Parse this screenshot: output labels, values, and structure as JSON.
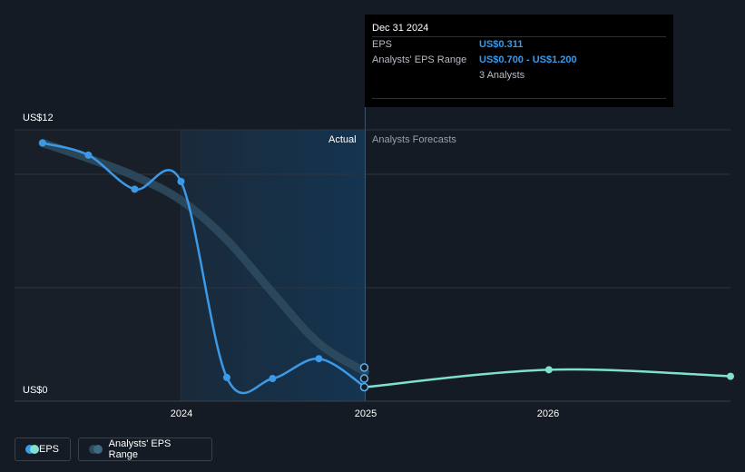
{
  "chart_data": {
    "type": "line",
    "y_axis": {
      "min_label": "US$0",
      "max_label": "US$12",
      "ylim": [
        0,
        12
      ]
    },
    "x_ticks": [
      "2024",
      "2025",
      "2026"
    ],
    "regions": {
      "actual_label": "Actual",
      "forecast_label": "Analysts Forecasts"
    },
    "series": [
      {
        "name": "EPS",
        "color": "#3b9ae8",
        "x": [
          "2023-03-31",
          "2023-06-30",
          "2023-09-30",
          "2023-12-31",
          "2024-03-31",
          "2024-06-30",
          "2024-09-30",
          "2024-12-31"
        ],
        "values": [
          11.4,
          10.85,
          9.3,
          9.65,
          0.75,
          0.7,
          1.6,
          0.311
        ]
      },
      {
        "name": "EPS (forecast)",
        "color": "#7fe0d0",
        "x": [
          "2024-12-31",
          "2025-12-31",
          "2026-12-31"
        ],
        "values": [
          0.311,
          1.1,
          0.8
        ]
      },
      {
        "name": "Analysts' EPS Range",
        "color": "#2d4a5e",
        "x": [
          "2023-03-31",
          "2023-06-30",
          "2023-09-30",
          "2023-12-31",
          "2024-03-31",
          "2024-06-30",
          "2024-09-30",
          "2024-12-31"
        ],
        "values": [
          11.4,
          10.7,
          9.9,
          8.8,
          7.0,
          4.6,
          2.3,
          1.0
        ]
      }
    ],
    "range_points": [
      0.311,
      0.7,
      1.2
    ],
    "legend": {
      "placement": "bottom-left",
      "items": [
        "EPS",
        "Analysts' EPS Range"
      ]
    },
    "grid": true
  },
  "tooltip": {
    "date": "Dec 31 2024",
    "eps_label": "EPS",
    "eps_value": "US$0.311",
    "range_label": "Analysts' EPS Range",
    "range_value": "US$0.700 - US$1.200",
    "analysts": "3 Analysts"
  }
}
